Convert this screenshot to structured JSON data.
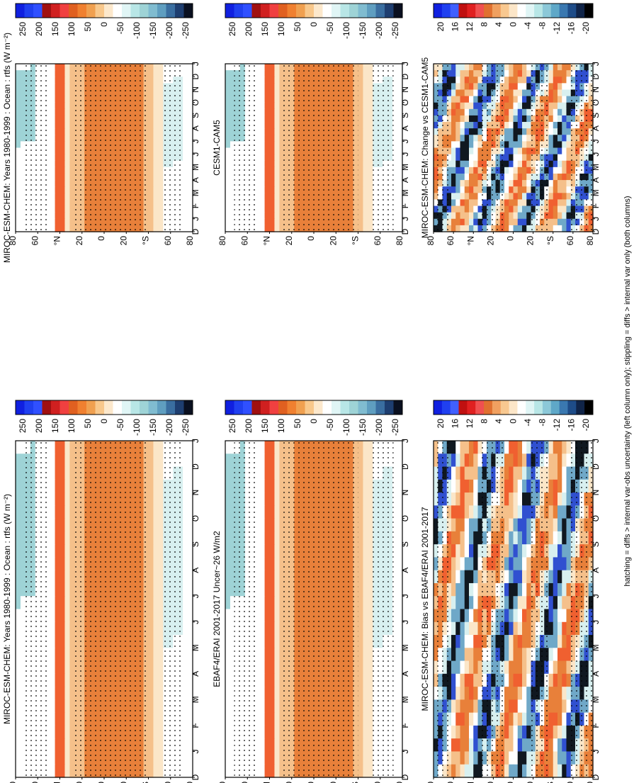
{
  "figure": {
    "footer": "hatching = diffs > internal var-obs uncertainty (left column only); stippling = diffs > internal var only (both columns)",
    "row_labels": [
      "D",
      "J",
      "F",
      "M",
      "A",
      "M",
      "J",
      "J",
      "A",
      "S",
      "O",
      "N",
      "D",
      "J"
    ],
    "lat_labels": [
      "80",
      "60",
      "°N",
      "20",
      "0",
      "20",
      "°S",
      "60",
      "80"
    ],
    "cbar_abs_labels": [
      "250",
      "200",
      "150",
      "100",
      "50",
      "0",
      "-50",
      "-100",
      "-150",
      "-200",
      "-250"
    ],
    "cbar_diff_labels": [
      "20",
      "16",
      "12",
      "8",
      "4",
      "0",
      "-4",
      "-8",
      "-12",
      "-16",
      "-20"
    ]
  },
  "colors": {
    "strong_pos": "#f06030",
    "pos": "#e8803a",
    "weak_pos": "#f5c08a",
    "pale_pos": "#fbe6c8",
    "neutral": "#ffffff",
    "weak_neg": "#d8f0f0",
    "neg": "#9ed3d6",
    "strong_neg": "#6fa8c8",
    "blue": "#3050d0",
    "dark": "#101820"
  },
  "chart_data": [
    {
      "type": "heatmap",
      "title": "MIROC-ESM-CHEM: Years 1980-1999 : Ocean : rtfs (W m⁻²)",
      "panel": "top-left",
      "x_axis": "latitude (80N to 80S)",
      "y_axis": "month (D to J)",
      "colorbar_ticks": [
        250,
        200,
        150,
        100,
        50,
        0,
        -50,
        -100,
        -150,
        -200,
        -250
      ]
    },
    {
      "type": "heatmap",
      "title": "MIROC-ESM-CHEM: Years 1980-1999 : Ocean : rtfs (W m⁻²)",
      "panel": "top-right",
      "colorbar_ticks": [
        250,
        200,
        150,
        100,
        50,
        0,
        -50,
        -100,
        -150,
        -200,
        -250
      ]
    },
    {
      "type": "heatmap",
      "title": "EBAF4/ERAI 2001-2017 Uncer~26 W/m2",
      "panel": "middle-left",
      "colorbar_ticks": [
        250,
        200,
        150,
        100,
        50,
        0,
        -50,
        -100,
        -150,
        -200,
        -250
      ]
    },
    {
      "type": "heatmap",
      "title": "CESM1-CAM5",
      "panel": "middle-right",
      "colorbar_ticks": [
        250,
        200,
        150,
        100,
        50,
        0,
        -50,
        -100,
        -150,
        -200,
        -250
      ]
    },
    {
      "type": "heatmap",
      "title": "MIROC-ESM-CHEM: Bias vs EBAF4/ERAI 2001-2017",
      "panel": "bottom-left",
      "colorbar_ticks": [
        20,
        16,
        12,
        8,
        4,
        0,
        -4,
        -8,
        -12,
        -16,
        -20
      ]
    },
    {
      "type": "heatmap",
      "title": "MIROC-ESM-CHEM: Change vs CESM1-CAM5",
      "panel": "bottom-right",
      "colorbar_ticks": [
        20,
        16,
        12,
        8,
        4,
        0,
        -4,
        -8,
        -12,
        -16,
        -20
      ]
    }
  ]
}
